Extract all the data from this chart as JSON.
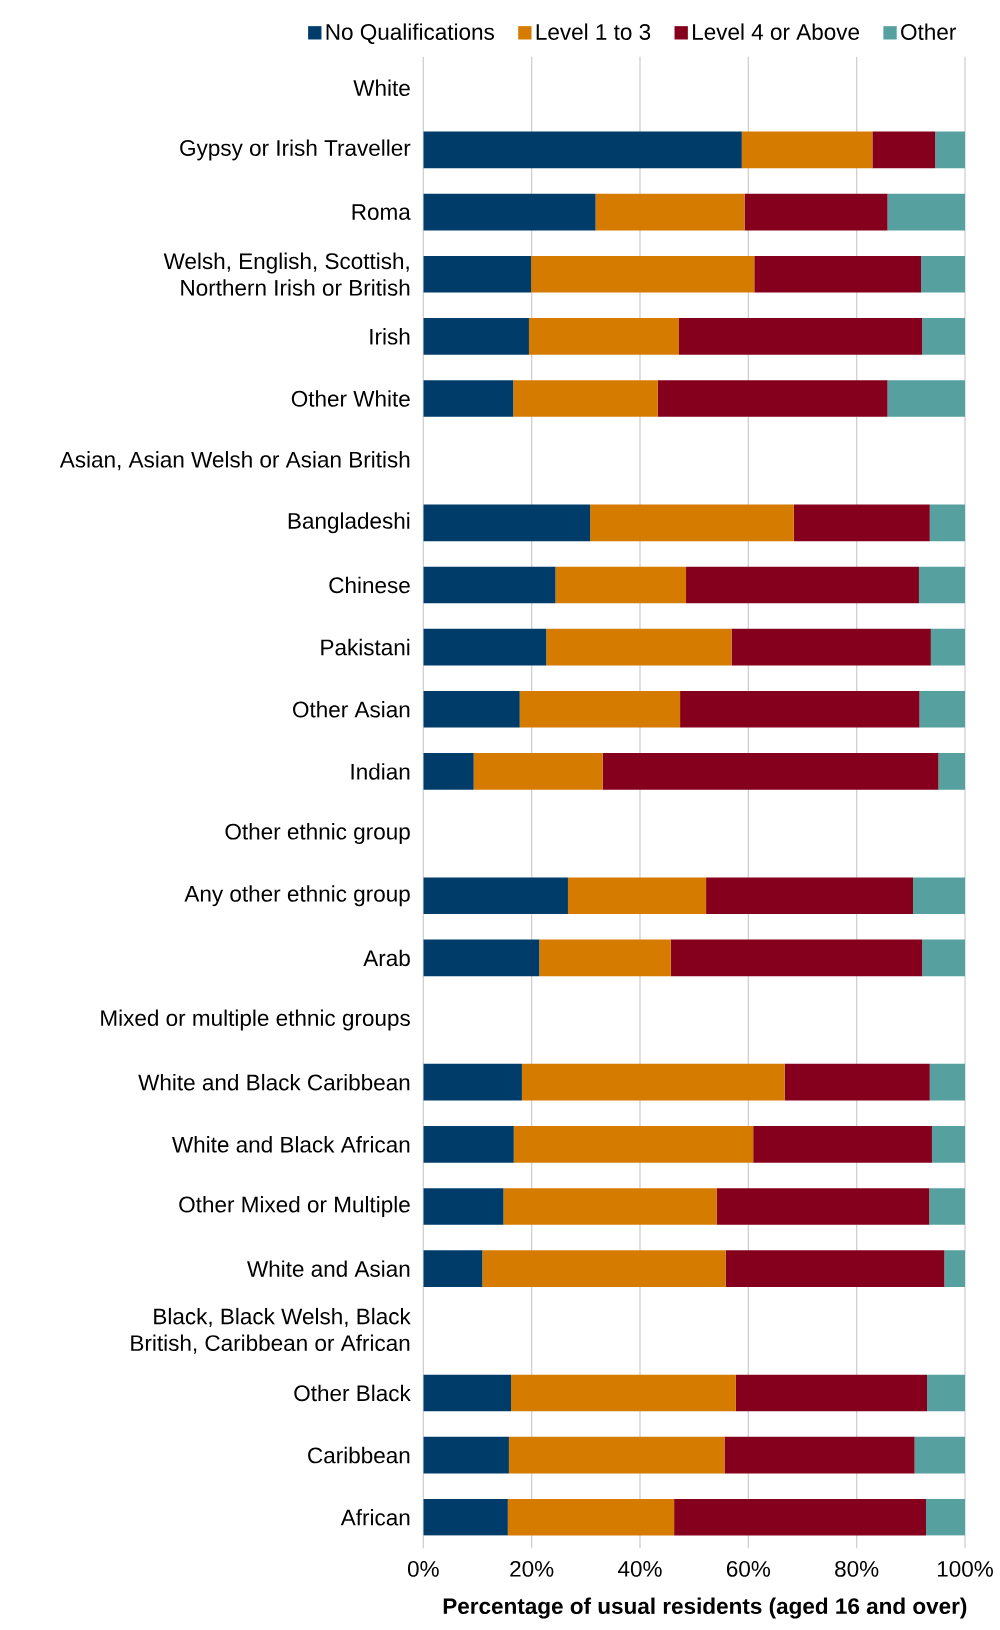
{
  "chart_data": {
    "type": "bar",
    "orientation": "horizontal",
    "stacked": true,
    "xlabel": "Percentage of usual residents (aged 16 and over)",
    "categories": [
      "White",
      "Gypsy or Irish Traveller",
      "Roma",
      "Welsh, English, Scottish, Northern Irish or British",
      "Irish",
      "Other White",
      "Asian, Asian Welsh or Asian British",
      "Bangladeshi",
      "Chinese",
      "Pakistani",
      "Other Asian",
      "Indian",
      "Other ethnic group",
      "Any other ethnic group",
      "Arab",
      "Mixed or multiple ethnic groups",
      "White and Black Caribbean",
      "White and Black African",
      "Other Mixed or Multiple",
      "White and Asian",
      "Black, Black Welsh, Black British, Caribbean or African",
      "Other Black",
      "Caribbean",
      "African"
    ],
    "series": [
      {
        "name": "No Qualifications",
        "color": "#003c69",
        "values": [
          null,
          58.8,
          31.8,
          19.9,
          19.5,
          16.6,
          null,
          30.8,
          24.4,
          22.7,
          17.8,
          9.3,
          null,
          26.7,
          21.4,
          null,
          18.2,
          16.7,
          14.8,
          10.9,
          null,
          16.2,
          15.8,
          15.6
        ]
      },
      {
        "name": "Level 1 to 3",
        "color": "#d57c00",
        "values": [
          null,
          24.1,
          27.5,
          41.2,
          27.7,
          26.7,
          null,
          37.6,
          24.1,
          34.2,
          29.6,
          23.8,
          null,
          25.5,
          24.3,
          null,
          48.5,
          44.2,
          39.4,
          44.9,
          null,
          41.5,
          39.8,
          30.7
        ]
      },
      {
        "name": "Level 4 or Above",
        "color": "#85001c",
        "values": [
          null,
          11.6,
          26.4,
          30.8,
          44.9,
          42.4,
          null,
          25.1,
          43.0,
          36.8,
          44.2,
          62.0,
          null,
          38.2,
          46.4,
          null,
          26.8,
          33.0,
          39.2,
          40.4,
          null,
          35.3,
          35.1,
          46.5
        ]
      },
      {
        "name": "Other",
        "color": "#56a0a0",
        "values": [
          null,
          5.5,
          14.3,
          8.1,
          7.9,
          14.3,
          null,
          6.5,
          8.5,
          6.3,
          8.4,
          4.9,
          null,
          9.6,
          7.9,
          null,
          6.5,
          6.1,
          6.6,
          3.8,
          null,
          7.0,
          9.3,
          7.2
        ]
      }
    ],
    "xlim": [
      0,
      100
    ],
    "xticks": [
      {
        "value": 0,
        "label": "0%"
      },
      {
        "value": 20,
        "label": "20%"
      },
      {
        "value": 40,
        "label": "40%"
      },
      {
        "value": 60,
        "label": "60%"
      },
      {
        "value": 80,
        "label": "80%"
      },
      {
        "value": 100,
        "label": "100%"
      }
    ],
    "grid": "x",
    "legend": "top"
  }
}
